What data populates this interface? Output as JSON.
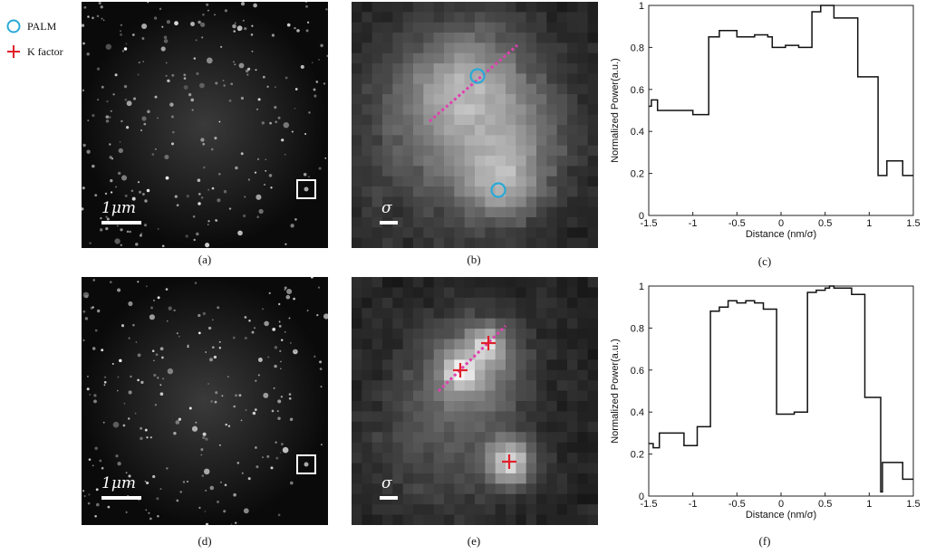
{
  "legend": {
    "palm": {
      "label": "PALM",
      "color": "#2aa9d6",
      "icon": "circle-marker-icon"
    },
    "kfactor": {
      "label": "K factor",
      "color": "#e0202a",
      "icon": "plus-marker-icon"
    }
  },
  "panels": {
    "a": {
      "label": "(a)",
      "scale_text": "1μm"
    },
    "b": {
      "label": "(b)",
      "scale_text": "σ"
    },
    "c": {
      "label": "(c)"
    },
    "d": {
      "label": "(d)",
      "scale_text": "1μm"
    },
    "e": {
      "label": "(e)",
      "scale_text": "σ"
    },
    "f": {
      "label": "(f)"
    }
  },
  "colors": {
    "line_profile": "#e040b0",
    "plot_line": "#111111"
  },
  "chart_data": [
    {
      "type": "line",
      "panel": "c",
      "xlabel": "Distance (nm/σ)",
      "ylabel": "Normalized Power(a.u.)",
      "xlim": [
        -1.5,
        1.5
      ],
      "ylim": [
        0,
        1
      ],
      "xticks": [
        "-1.5",
        "-1",
        "-0.5",
        "0",
        "0.5",
        "1",
        "1.5"
      ],
      "yticks": [
        "0",
        "0.2",
        "0.4",
        "0.6",
        "0.8",
        "1"
      ],
      "x": [
        -1.5,
        -1.47,
        -1.43,
        -1.4,
        -1.2,
        -1.15,
        -1.0,
        -0.85,
        -0.82,
        -0.7,
        -0.6,
        -0.5,
        -0.45,
        -0.3,
        -0.15,
        -0.1,
        0.0,
        0.05,
        0.2,
        0.3,
        0.35,
        0.45,
        0.55,
        0.6,
        0.75,
        0.85,
        0.87,
        1.05,
        1.08,
        1.1,
        1.2,
        1.3,
        1.38,
        1.5
      ],
      "y": [
        0.52,
        0.55,
        0.55,
        0.5,
        0.5,
        0.5,
        0.48,
        0.48,
        0.85,
        0.88,
        0.88,
        0.85,
        0.85,
        0.86,
        0.85,
        0.8,
        0.8,
        0.81,
        0.8,
        0.8,
        0.97,
        1.0,
        1.0,
        0.94,
        0.94,
        0.94,
        0.66,
        0.66,
        0.66,
        0.19,
        0.26,
        0.26,
        0.19,
        0.19
      ]
    },
    {
      "type": "line",
      "panel": "f",
      "xlabel": "Distance (nm/σ)",
      "ylabel": "Normalized Power(a.u.)",
      "xlim": [
        -1.5,
        1.5
      ],
      "ylim": [
        0,
        1
      ],
      "xticks": [
        "-1.5",
        "-1",
        "-0.5",
        "0",
        "0.5",
        "1",
        "1.5"
      ],
      "yticks": [
        "0",
        "0.2",
        "0.4",
        "0.6",
        "0.8",
        "1"
      ],
      "x": [
        -1.5,
        -1.45,
        -1.38,
        -1.2,
        -1.1,
        -1.0,
        -0.95,
        -0.9,
        -0.8,
        -0.7,
        -0.6,
        -0.5,
        -0.4,
        -0.3,
        -0.2,
        -0.15,
        -0.05,
        0.0,
        0.15,
        0.25,
        0.3,
        0.4,
        0.5,
        0.55,
        0.6,
        0.7,
        0.8,
        0.85,
        0.95,
        1.05,
        1.1,
        1.13,
        1.15,
        1.3,
        1.38,
        1.5
      ],
      "y": [
        0.25,
        0.23,
        0.3,
        0.3,
        0.24,
        0.24,
        0.33,
        0.33,
        0.88,
        0.9,
        0.93,
        0.92,
        0.93,
        0.92,
        0.89,
        0.89,
        0.39,
        0.39,
        0.4,
        0.4,
        0.97,
        0.98,
        0.99,
        1.0,
        0.99,
        0.99,
        0.96,
        0.96,
        0.47,
        0.47,
        0.47,
        0.02,
        0.16,
        0.16,
        0.08,
        0.08
      ]
    }
  ]
}
